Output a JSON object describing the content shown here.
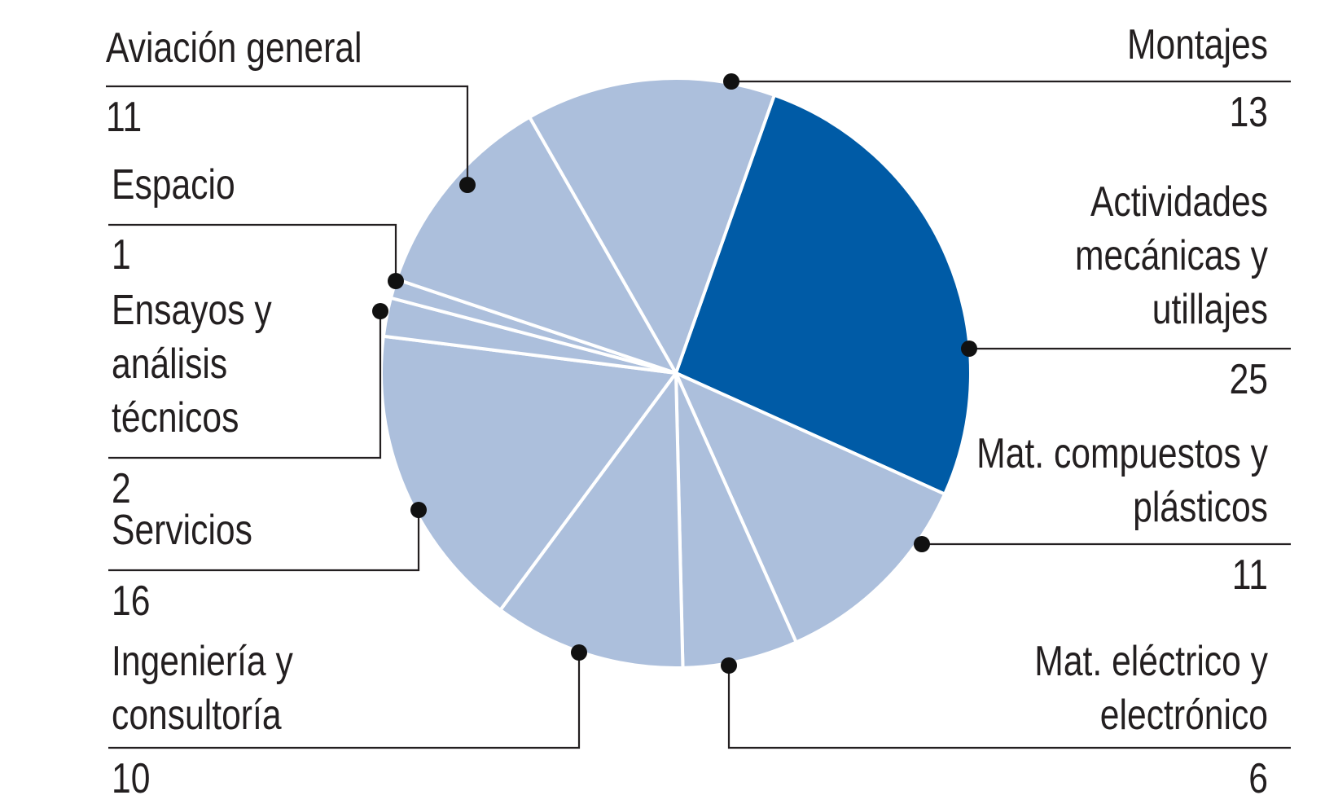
{
  "chart_data": {
    "type": "pie",
    "title": "",
    "slices": [
      {
        "label": [
          "Actividades",
          "mecánicas y",
          "utillajes"
        ],
        "value": 25,
        "highlight": true
      },
      {
        "label": [
          "Mat. compuestos y",
          "plásticos"
        ],
        "value": 11
      },
      {
        "label": [
          "Mat. eléctrico y",
          "electrónico"
        ],
        "value": 6
      },
      {
        "label": [
          "Ingeniería y",
          "consultoría"
        ],
        "value": 10
      },
      {
        "label": [
          "Servicios"
        ],
        "value": 16
      },
      {
        "label": [
          "Ensayos y",
          "análisis",
          "técnicos"
        ],
        "value": 2
      },
      {
        "label": [
          "Espacio"
        ],
        "value": 1
      },
      {
        "label": [
          "Aviación general"
        ],
        "value": 11
      },
      {
        "label": [
          "Montajes"
        ],
        "value": 13
      }
    ],
    "colors": {
      "highlight": "#005ba6",
      "default": "#acbfdc",
      "separator": "#ffffff",
      "text": "#231f20"
    }
  }
}
